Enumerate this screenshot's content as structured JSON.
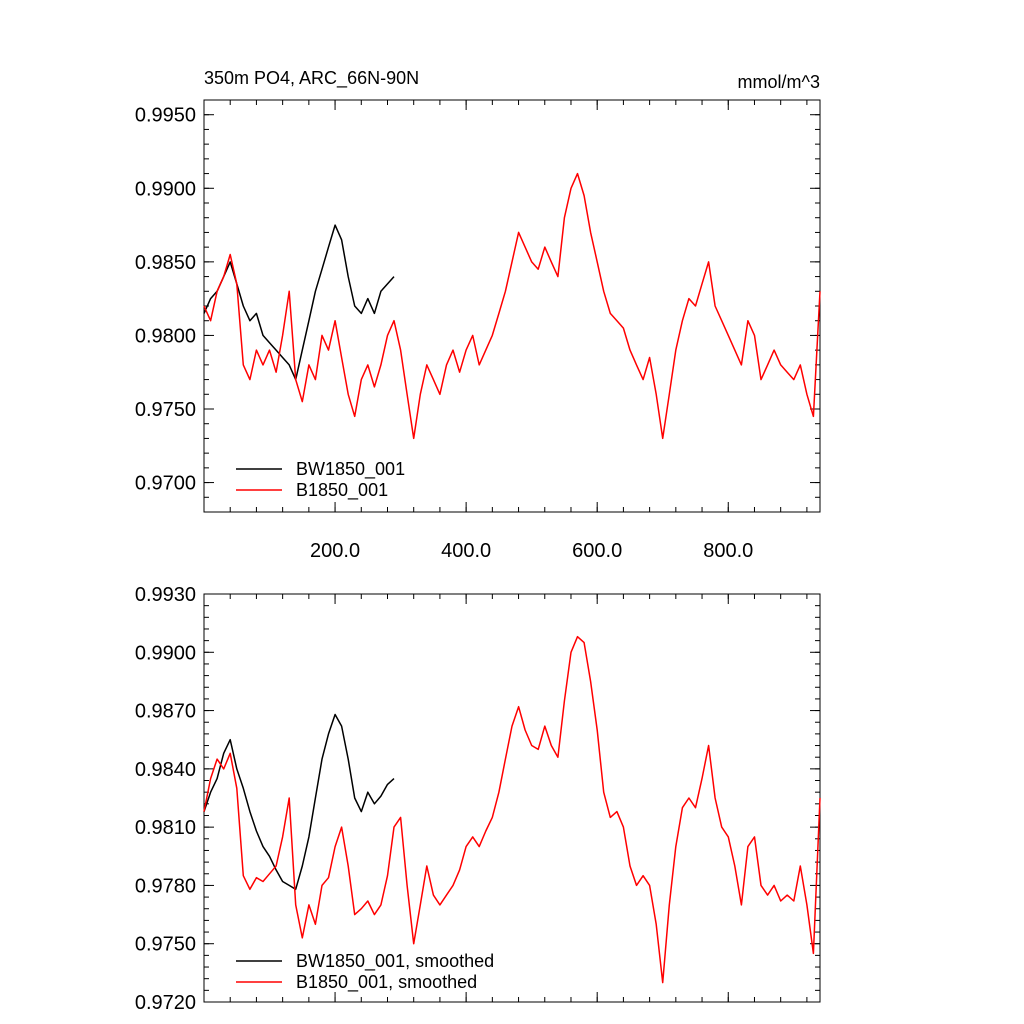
{
  "header": {
    "title": "350m PO4, ARC_66N-90N",
    "units": "mmol/m^3"
  },
  "colors": {
    "bw_series": "#000000",
    "b_series": "#ff0000"
  },
  "chart_data": [
    {
      "type": "line",
      "title": "350m PO4, ARC_66N-90N",
      "units_label": "mmol/m^3",
      "xlim": [
        0,
        940
      ],
      "ylim": [
        0.968,
        0.996
      ],
      "x_ticks": [
        200,
        400,
        600,
        800
      ],
      "x_tick_labels": [
        "200.0",
        "400.0",
        "600.0",
        "800.0"
      ],
      "y_ticks": [
        0.97,
        0.975,
        0.98,
        0.985,
        0.99,
        0.995
      ],
      "y_tick_labels": [
        "0.9700",
        "0.9750",
        "0.9800",
        "0.9850",
        "0.9900",
        "0.9950"
      ],
      "legend_position": "bottom-left",
      "grid": false,
      "series": [
        {
          "name": "BW1850_001",
          "color": "#000000",
          "x": [
            0,
            10,
            20,
            30,
            40,
            50,
            60,
            70,
            80,
            90,
            100,
            110,
            120,
            130,
            140,
            150,
            160,
            170,
            180,
            190,
            200,
            210,
            220,
            230,
            240,
            250,
            260,
            270,
            280,
            290
          ],
          "y": [
            0.9815,
            0.9825,
            0.983,
            0.984,
            0.985,
            0.9835,
            0.982,
            0.981,
            0.9815,
            0.98,
            0.9795,
            0.979,
            0.9785,
            0.978,
            0.977,
            0.979,
            0.981,
            0.983,
            0.9845,
            0.986,
            0.9875,
            0.9865,
            0.984,
            0.982,
            0.9815,
            0.9825,
            0.9815,
            0.983,
            0.9835,
            0.984
          ]
        },
        {
          "name": "B1850_001",
          "color": "#ff0000",
          "x": [
            0,
            10,
            20,
            30,
            40,
            50,
            60,
            70,
            80,
            90,
            100,
            110,
            120,
            130,
            140,
            150,
            160,
            170,
            180,
            190,
            200,
            210,
            220,
            230,
            240,
            250,
            260,
            270,
            280,
            290,
            300,
            310,
            320,
            330,
            340,
            350,
            360,
            370,
            380,
            390,
            400,
            410,
            420,
            430,
            440,
            450,
            460,
            470,
            480,
            490,
            500,
            510,
            520,
            530,
            540,
            550,
            560,
            570,
            580,
            590,
            600,
            610,
            620,
            630,
            640,
            650,
            660,
            670,
            680,
            690,
            700,
            710,
            720,
            730,
            740,
            750,
            760,
            770,
            780,
            790,
            800,
            810,
            820,
            830,
            840,
            850,
            860,
            870,
            880,
            890,
            900,
            910,
            920,
            930,
            940
          ],
          "y": [
            0.982,
            0.981,
            0.983,
            0.984,
            0.9855,
            0.9835,
            0.978,
            0.977,
            0.979,
            0.978,
            0.979,
            0.9775,
            0.98,
            0.983,
            0.977,
            0.9755,
            0.978,
            0.977,
            0.98,
            0.979,
            0.981,
            0.9785,
            0.976,
            0.9745,
            0.977,
            0.978,
            0.9765,
            0.978,
            0.98,
            0.981,
            0.979,
            0.976,
            0.973,
            0.976,
            0.978,
            0.977,
            0.976,
            0.978,
            0.979,
            0.9775,
            0.979,
            0.98,
            0.978,
            0.979,
            0.98,
            0.9815,
            0.983,
            0.985,
            0.987,
            0.986,
            0.985,
            0.9845,
            0.986,
            0.985,
            0.984,
            0.988,
            0.99,
            0.991,
            0.9895,
            0.987,
            0.985,
            0.983,
            0.9815,
            0.981,
            0.9805,
            0.979,
            0.978,
            0.977,
            0.9785,
            0.976,
            0.973,
            0.976,
            0.979,
            0.981,
            0.9825,
            0.982,
            0.9835,
            0.985,
            0.982,
            0.981,
            0.98,
            0.979,
            0.978,
            0.981,
            0.98,
            0.977,
            0.978,
            0.979,
            0.978,
            0.9775,
            0.977,
            0.978,
            0.976,
            0.9745,
            0.983
          ]
        }
      ]
    },
    {
      "type": "line",
      "xlim": [
        0,
        940
      ],
      "ylim": [
        0.972,
        0.993
      ],
      "y_ticks": [
        0.972,
        0.975,
        0.978,
        0.981,
        0.984,
        0.987,
        0.99,
        0.993
      ],
      "y_tick_labels": [
        "0.9720",
        "0.9750",
        "0.9780",
        "0.9810",
        "0.9840",
        "0.9870",
        "0.9900",
        "0.9930"
      ],
      "legend_position": "bottom-left",
      "grid": false,
      "series": [
        {
          "name": "BW1850_001, smoothed",
          "color": "#000000",
          "x": [
            0,
            10,
            20,
            30,
            40,
            50,
            60,
            70,
            80,
            90,
            100,
            110,
            120,
            130,
            140,
            150,
            160,
            170,
            180,
            190,
            200,
            210,
            220,
            230,
            240,
            250,
            260,
            270,
            280,
            290
          ],
          "y": [
            0.9818,
            0.9828,
            0.9835,
            0.9848,
            0.9855,
            0.984,
            0.983,
            0.9818,
            0.9808,
            0.98,
            0.9795,
            0.9788,
            0.9782,
            0.978,
            0.9778,
            0.979,
            0.9805,
            0.9825,
            0.9845,
            0.9858,
            0.9868,
            0.9862,
            0.9845,
            0.9825,
            0.9818,
            0.9828,
            0.9822,
            0.9826,
            0.9832,
            0.9835
          ]
        },
        {
          "name": "B1850_001, smoothed",
          "color": "#ff0000",
          "x": [
            0,
            10,
            20,
            30,
            40,
            50,
            60,
            70,
            80,
            90,
            100,
            110,
            120,
            130,
            140,
            150,
            160,
            170,
            180,
            190,
            200,
            210,
            220,
            230,
            240,
            250,
            260,
            270,
            280,
            290,
            300,
            310,
            320,
            330,
            340,
            350,
            360,
            370,
            380,
            390,
            400,
            410,
            420,
            430,
            440,
            450,
            460,
            470,
            480,
            490,
            500,
            510,
            520,
            530,
            540,
            550,
            560,
            570,
            580,
            590,
            600,
            610,
            620,
            630,
            640,
            650,
            660,
            670,
            680,
            690,
            700,
            710,
            720,
            730,
            740,
            750,
            760,
            770,
            780,
            790,
            800,
            810,
            820,
            830,
            840,
            850,
            860,
            870,
            880,
            890,
            900,
            910,
            920,
            930,
            940
          ],
          "y": [
            0.9818,
            0.9835,
            0.9845,
            0.984,
            0.9848,
            0.983,
            0.9785,
            0.9778,
            0.9784,
            0.9782,
            0.9786,
            0.979,
            0.9805,
            0.9825,
            0.977,
            0.9753,
            0.977,
            0.976,
            0.978,
            0.9784,
            0.98,
            0.981,
            0.979,
            0.9765,
            0.9768,
            0.9772,
            0.9765,
            0.977,
            0.9785,
            0.981,
            0.9815,
            0.978,
            0.975,
            0.977,
            0.979,
            0.9775,
            0.977,
            0.9775,
            0.978,
            0.9788,
            0.98,
            0.9805,
            0.98,
            0.9808,
            0.9815,
            0.9828,
            0.9845,
            0.9862,
            0.9872,
            0.986,
            0.9852,
            0.985,
            0.9862,
            0.9852,
            0.9846,
            0.9875,
            0.99,
            0.9908,
            0.9905,
            0.9885,
            0.986,
            0.9828,
            0.9815,
            0.9818,
            0.981,
            0.979,
            0.978,
            0.9785,
            0.978,
            0.976,
            0.973,
            0.977,
            0.98,
            0.982,
            0.9825,
            0.982,
            0.9835,
            0.9852,
            0.9825,
            0.981,
            0.9805,
            0.979,
            0.977,
            0.98,
            0.9805,
            0.978,
            0.9775,
            0.978,
            0.9772,
            0.9775,
            0.9772,
            0.979,
            0.977,
            0.9745,
            0.9825
          ]
        }
      ]
    }
  ]
}
